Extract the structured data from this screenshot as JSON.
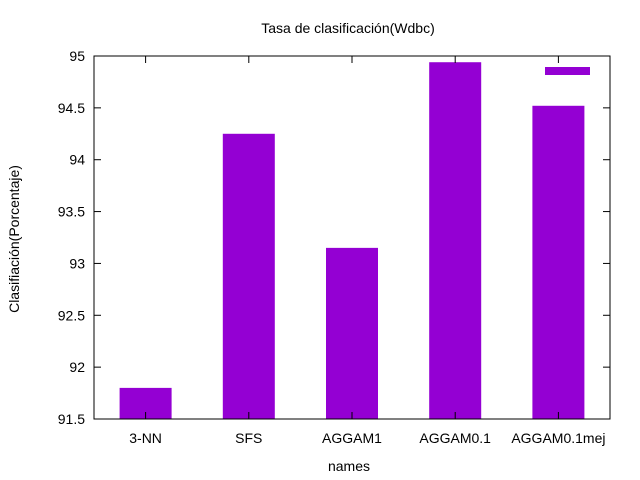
{
  "chart_data": {
    "type": "bar",
    "title": "Tasa de clasificación(Wdbc)",
    "xlabel": "names",
    "ylabel": "Clasifiación(Porcentaje)",
    "categories": [
      "3-NN",
      "SFS",
      "AGGAM1",
      "AGGAM0.1",
      "AGGAM0.1mej"
    ],
    "values": [
      91.8,
      94.25,
      93.15,
      94.94,
      94.52
    ],
    "ylim": [
      91.5,
      95
    ],
    "yticks": [
      "91.5",
      "92",
      "92.5",
      "93",
      "93.5",
      "94",
      "94.5",
      "95"
    ],
    "grid": false,
    "legend": "top-right",
    "bar_color": "#9400d3"
  }
}
